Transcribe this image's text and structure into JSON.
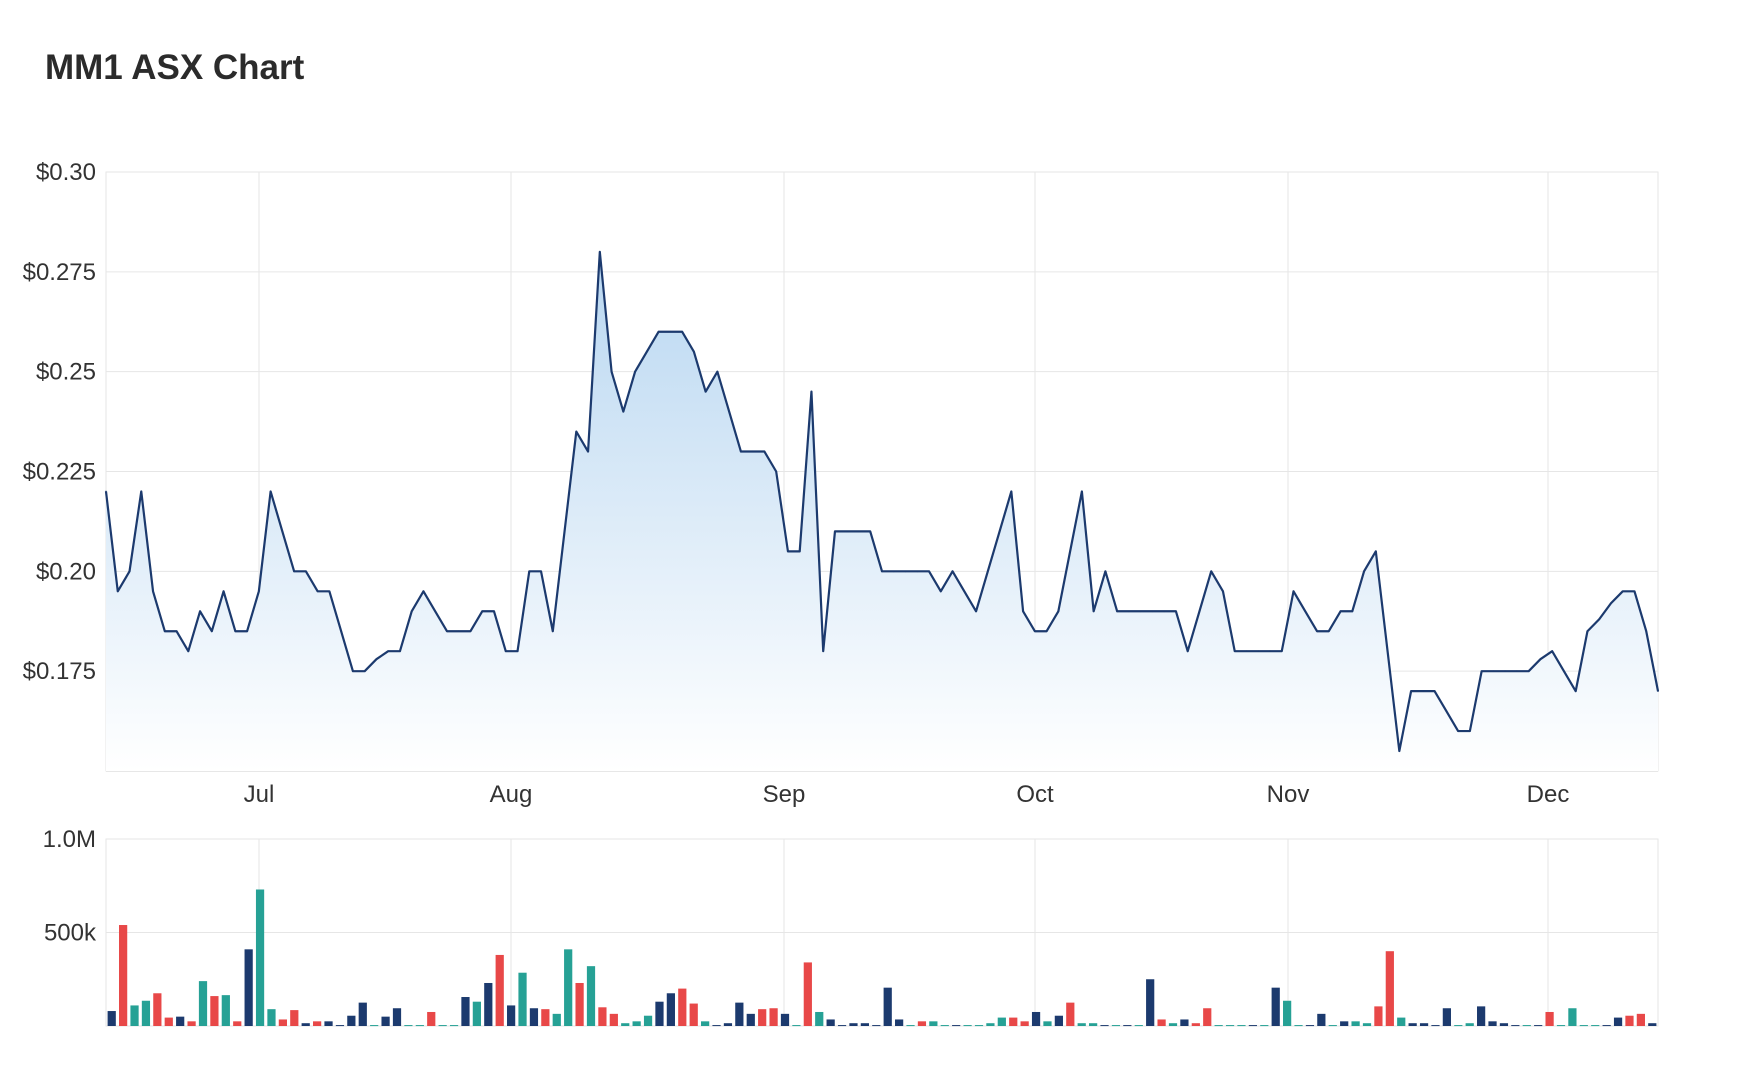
{
  "title": "MM1 ASX Chart",
  "colors": {
    "line": "#1c3a6e",
    "area_top": "#b9d7f1",
    "area_bottom": "#ffffff",
    "grid": "#e6e6e6",
    "vol_navy": "#1c3a6e",
    "vol_red": "#e84848",
    "vol_teal": "#26a195"
  },
  "chart_data": [
    {
      "type": "area",
      "title": "MM1 ASX Chart",
      "xlabel": "",
      "ylabel": "",
      "x_tick_labels": [
        "Jul",
        "Aug",
        "Sep",
        "Oct",
        "Nov",
        "Dec"
      ],
      "y_tick_labels": [
        "$0.30",
        "$0.275",
        "$0.25",
        "$0.225",
        "$0.20",
        "$0.175"
      ],
      "y_ticks": [
        0.3,
        0.275,
        0.25,
        0.225,
        0.2,
        0.175
      ],
      "ylim": [
        0.15,
        0.3
      ],
      "grid": true,
      "series": [
        {
          "values": [
            0.22,
            0.195,
            0.2,
            0.22,
            0.195,
            0.185,
            0.185,
            0.18,
            0.19,
            0.185,
            0.195,
            0.185,
            0.185,
            0.195,
            0.22,
            0.21,
            0.2,
            0.2,
            0.195,
            0.195,
            0.185,
            0.175,
            0.175,
            0.178,
            0.18,
            0.18,
            0.19,
            0.195,
            0.19,
            0.185,
            0.185,
            0.185,
            0.19,
            0.19,
            0.18,
            0.18,
            0.2,
            0.2,
            0.185,
            0.21,
            0.235,
            0.23,
            0.28,
            0.25,
            0.24,
            0.25,
            0.255,
            0.26,
            0.26,
            0.26,
            0.255,
            0.245,
            0.25,
            0.24,
            0.23,
            0.23,
            0.23,
            0.225,
            0.205,
            0.205,
            0.245,
            0.18,
            0.21,
            0.21,
            0.21,
            0.21,
            0.2,
            0.2,
            0.2,
            0.2,
            0.2,
            0.195,
            0.2,
            0.195,
            0.19,
            0.2,
            0.21,
            0.22,
            0.19,
            0.185,
            0.185,
            0.19,
            0.205,
            0.22,
            0.19,
            0.2,
            0.19,
            0.19,
            0.19,
            0.19,
            0.19,
            0.19,
            0.18,
            0.19,
            0.2,
            0.195,
            0.18,
            0.18,
            0.18,
            0.18,
            0.18,
            0.195,
            0.19,
            0.185,
            0.185,
            0.19,
            0.19,
            0.2,
            0.205,
            0.18,
            0.155,
            0.17,
            0.17,
            0.17,
            0.165,
            0.16,
            0.16,
            0.175,
            0.175,
            0.175,
            0.175,
            0.175,
            0.178,
            0.18,
            0.175,
            0.17,
            0.185,
            0.188,
            0.192,
            0.195,
            0.195,
            0.185,
            0.17
          ]
        }
      ]
    },
    {
      "type": "bar",
      "title": "",
      "xlabel": "",
      "ylabel": "",
      "y_tick_labels": [
        "1.0M",
        "500k"
      ],
      "y_ticks": [
        1000000,
        500000
      ],
      "ylim": [
        0,
        1000000
      ],
      "grid": true,
      "series": [
        {
          "values": [
            80000,
            540000,
            110000,
            135000,
            175000,
            45000,
            50000,
            25000,
            240000,
            160000,
            165000,
            25000,
            410000,
            730000,
            90000,
            35000,
            85000,
            15000,
            25000,
            25000,
            5000,
            55000,
            125000,
            5000,
            50000,
            95000,
            5000,
            5000,
            75000,
            5000,
            5000,
            155000,
            130000,
            230000,
            380000,
            110000,
            285000,
            95000,
            90000,
            65000,
            410000,
            230000,
            320000,
            100000,
            65000,
            15000,
            25000,
            55000,
            130000,
            175000,
            200000,
            120000,
            25000,
            5000,
            15000,
            125000,
            65000,
            90000,
            95000,
            65000,
            5000,
            340000,
            75000,
            35000,
            5000,
            15000,
            15000,
            5000,
            205000,
            35000,
            5000,
            25000,
            25000,
            5000,
            5000,
            5000,
            5000,
            15000,
            45000,
            45000,
            25000,
            75000,
            25000,
            55000,
            125000,
            15000,
            15000,
            5000,
            5000,
            5000,
            5000,
            250000,
            35000,
            15000,
            35000,
            15000,
            95000,
            5000,
            5000,
            5000,
            5000,
            5000,
            205000,
            135000,
            5000,
            5000,
            65000,
            5000,
            25000,
            25000,
            15000,
            105000,
            400000,
            45000,
            15000,
            15000,
            5000,
            95000,
            5000,
            15000,
            105000,
            25000,
            15000,
            5000,
            5000,
            5000,
            75000,
            5000,
            95000,
            5000,
            5000,
            5000,
            45000,
            55000,
            65000,
            15000
          ],
          "colors": [
            "navy",
            "red",
            "teal",
            "teal",
            "red",
            "red",
            "navy",
            "red",
            "teal",
            "red",
            "teal",
            "red",
            "navy",
            "teal",
            "teal",
            "red",
            "red",
            "navy",
            "red",
            "navy",
            "navy",
            "navy",
            "navy",
            "teal",
            "navy",
            "navy",
            "teal",
            "teal",
            "red",
            "teal",
            "teal",
            "navy",
            "teal",
            "navy",
            "red",
            "navy",
            "teal",
            "navy",
            "red",
            "teal",
            "teal",
            "red",
            "teal",
            "red",
            "red",
            "teal",
            "teal",
            "teal",
            "navy",
            "navy",
            "red",
            "red",
            "teal",
            "navy",
            "navy",
            "navy",
            "navy",
            "red",
            "red",
            "navy",
            "teal",
            "red",
            "teal",
            "navy",
            "navy",
            "navy",
            "navy",
            "navy",
            "navy",
            "navy",
            "teal",
            "red",
            "teal",
            "teal",
            "navy",
            "teal",
            "teal",
            "teal",
            "teal",
            "red",
            "red",
            "navy",
            "teal",
            "navy",
            "red",
            "teal",
            "teal",
            "navy",
            "teal",
            "navy",
            "teal",
            "navy",
            "red",
            "teal",
            "navy",
            "red",
            "red",
            "teal",
            "teal",
            "teal",
            "navy",
            "teal",
            "navy",
            "teal",
            "teal",
            "navy",
            "navy",
            "teal",
            "navy",
            "teal",
            "teal",
            "red",
            "red",
            "teal",
            "navy",
            "navy",
            "navy",
            "navy",
            "teal",
            "teal",
            "navy",
            "navy",
            "navy",
            "navy",
            "teal",
            "navy",
            "red",
            "teal",
            "teal",
            "teal",
            "teal",
            "navy",
            "navy",
            "red",
            "red"
          ]
        }
      ]
    }
  ]
}
